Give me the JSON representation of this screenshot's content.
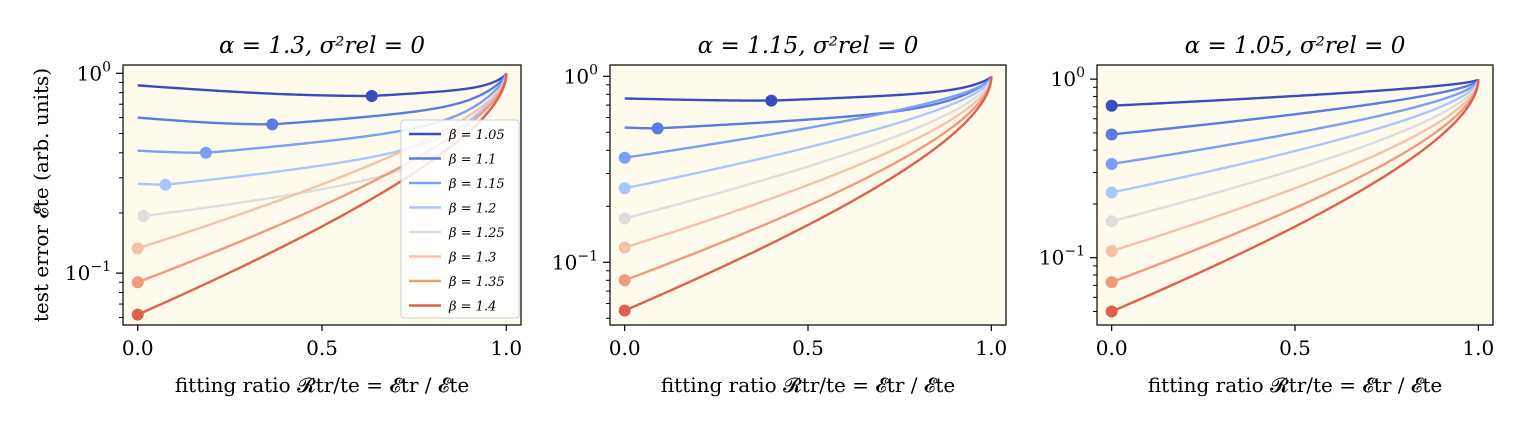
{
  "chart_data": [
    {
      "type": "line",
      "title": "α = 1.3, σ²rel = 0",
      "xlabel": "fitting ratio 𝓡tr/te = 𝓔tr / 𝓔te",
      "ylabel": "test error 𝓔te (arb. units)",
      "yscale": "log",
      "xlim": [
        -0.04,
        1.04
      ],
      "ylim": [
        0.055,
        1.1
      ],
      "xticks": [
        "0.0",
        "0.5",
        "1.0"
      ],
      "yticks": [
        {
          "label": "10",
          "exp": "0",
          "value": 1.0
        },
        {
          "label": "10",
          "exp": "−1",
          "value": 0.1
        }
      ],
      "legend": true,
      "legend_position": "right",
      "series": [
        {
          "name": "β = 1.05",
          "color": "#3b4cc0",
          "start": 0.87,
          "optimum_x": 0.635,
          "optimum_y": 0.77
        },
        {
          "name": "β = 1.1",
          "color": "#5a7be0",
          "start": 0.6,
          "optimum_x": 0.365,
          "optimum_y": 0.555
        },
        {
          "name": "β = 1.15",
          "color": "#7b9ff9",
          "start": 0.41,
          "optimum_x": 0.185,
          "optimum_y": 0.4
        },
        {
          "name": "β = 1.2",
          "color": "#aac7fd",
          "start": 0.28,
          "optimum_x": 0.075,
          "optimum_y": 0.277
        },
        {
          "name": "β = 1.25",
          "color": "#dddddd",
          "start": 0.193,
          "optimum_x": 0.015,
          "optimum_y": 0.193
        },
        {
          "name": "β = 1.3",
          "color": "#f5c2a8",
          "start": 0.133,
          "optimum_x": 0.0,
          "optimum_y": 0.133
        },
        {
          "name": "β = 1.35",
          "color": "#f09a7c",
          "start": 0.09,
          "optimum_x": 0.0,
          "optimum_y": 0.09
        },
        {
          "name": "β = 1.4",
          "color": "#de604d",
          "start": 0.062,
          "optimum_x": 0.0,
          "optimum_y": 0.062
        }
      ]
    },
    {
      "type": "line",
      "title": "α = 1.15, σ²rel = 0",
      "xlabel": "fitting ratio 𝓡tr/te = 𝓔tr / 𝓔te",
      "ylabel": "",
      "yscale": "log",
      "xlim": [
        -0.04,
        1.04
      ],
      "ylim": [
        0.046,
        1.15
      ],
      "xticks": [
        "0.0",
        "0.5",
        "1.0"
      ],
      "yticks": [
        {
          "label": "10",
          "exp": "0",
          "value": 1.0
        },
        {
          "label": "10",
          "exp": "−1",
          "value": 0.1
        }
      ],
      "legend": false,
      "series": [
        {
          "name": "β = 1.05",
          "color": "#3b4cc0",
          "start": 0.76,
          "optimum_x": 0.4,
          "optimum_y": 0.74
        },
        {
          "name": "β = 1.1",
          "color": "#5a7be0",
          "start": 0.53,
          "optimum_x": 0.09,
          "optimum_y": 0.525
        },
        {
          "name": "β = 1.15",
          "color": "#7b9ff9",
          "start": 0.365,
          "optimum_x": 0.0,
          "optimum_y": 0.365
        },
        {
          "name": "β = 1.2",
          "color": "#aac7fd",
          "start": 0.25,
          "optimum_x": 0.0,
          "optimum_y": 0.25
        },
        {
          "name": "β = 1.25",
          "color": "#dddddd",
          "start": 0.172,
          "optimum_x": 0.0,
          "optimum_y": 0.172
        },
        {
          "name": "β = 1.3",
          "color": "#f5c2a8",
          "start": 0.12,
          "optimum_x": 0.0,
          "optimum_y": 0.12
        },
        {
          "name": "β = 1.35",
          "color": "#f09a7c",
          "start": 0.08,
          "optimum_x": 0.0,
          "optimum_y": 0.08
        },
        {
          "name": "β = 1.4",
          "color": "#de604d",
          "start": 0.055,
          "optimum_x": 0.0,
          "optimum_y": 0.055
        }
      ]
    },
    {
      "type": "line",
      "title": "α = 1.05, σ²rel = 0",
      "xlabel": "fitting ratio 𝓡tr/te = 𝓔tr / 𝓔te",
      "ylabel": "",
      "yscale": "log",
      "xlim": [
        -0.04,
        1.04
      ],
      "ylim": [
        0.042,
        1.2
      ],
      "xticks": [
        "0.0",
        "0.5",
        "1.0"
      ],
      "yticks": [
        {
          "label": "10",
          "exp": "0",
          "value": 1.0
        },
        {
          "label": "10",
          "exp": "−1",
          "value": 0.1
        }
      ],
      "legend": false,
      "series": [
        {
          "name": "β = 1.05",
          "color": "#3b4cc0",
          "start": 0.71,
          "optimum_x": 0.0,
          "optimum_y": 0.71
        },
        {
          "name": "β = 1.1",
          "color": "#5a7be0",
          "start": 0.49,
          "optimum_x": 0.0,
          "optimum_y": 0.49
        },
        {
          "name": "β = 1.15",
          "color": "#7b9ff9",
          "start": 0.335,
          "optimum_x": 0.0,
          "optimum_y": 0.335
        },
        {
          "name": "β = 1.2",
          "color": "#aac7fd",
          "start": 0.232,
          "optimum_x": 0.0,
          "optimum_y": 0.232
        },
        {
          "name": "β = 1.25",
          "color": "#dddddd",
          "start": 0.16,
          "optimum_x": 0.0,
          "optimum_y": 0.16
        },
        {
          "name": "β = 1.3",
          "color": "#f5c2a8",
          "start": 0.109,
          "optimum_x": 0.0,
          "optimum_y": 0.109
        },
        {
          "name": "β = 1.35",
          "color": "#f09a7c",
          "start": 0.073,
          "optimum_x": 0.0,
          "optimum_y": 0.073
        },
        {
          "name": "β = 1.4",
          "color": "#de604d",
          "start": 0.05,
          "optimum_x": 0.0,
          "optimum_y": 0.05
        }
      ]
    }
  ],
  "style": {
    "plot_background": "#fefbed",
    "axis_color": "#000000"
  }
}
